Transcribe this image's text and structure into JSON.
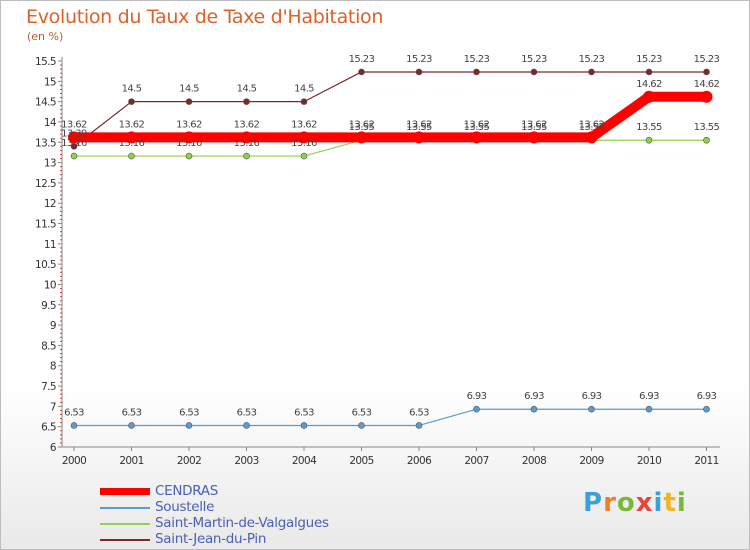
{
  "chart_data": {
    "type": "line",
    "title": "Evolution du Taux de Taxe d'Habitation",
    "ylabel": "(en %)",
    "xlabel": "",
    "categories": [
      "2000",
      "2001",
      "2002",
      "2003",
      "2004",
      "2005",
      "2006",
      "2007",
      "2008",
      "2009",
      "2010",
      "2011"
    ],
    "ylim": [
      6,
      15.5
    ],
    "yticks": [
      "6",
      "6.5",
      "7",
      "7.5",
      "8",
      "8.5",
      "9",
      "9.5",
      "10",
      "10.5",
      "11",
      "11.5",
      "12",
      "12.5",
      "13",
      "13.5",
      "14",
      "14.5",
      "15",
      "15.5"
    ],
    "grid": false,
    "series": [
      {
        "name": "Saint-Martin-de-Valgalgues",
        "color": "#8fd14f",
        "values": [
          13.16,
          13.16,
          13.16,
          13.16,
          13.16,
          13.55,
          13.55,
          13.55,
          13.55,
          13.55,
          13.55,
          13.55
        ],
        "labels": [
          "13.16",
          "13.16",
          "13.16",
          "13.16",
          "13.16",
          "13.55",
          "13.55",
          "13.55",
          "13.55",
          "13.55",
          "13.55",
          "13.55"
        ]
      },
      {
        "name": "Saint-Jean-du-Pin",
        "color": "#7a2a2a",
        "values": [
          13.4,
          14.5,
          14.5,
          14.5,
          14.5,
          15.23,
          15.23,
          15.23,
          15.23,
          15.23,
          15.23,
          15.23
        ],
        "labels": [
          "13.39",
          "14.5",
          "14.5",
          "14.5",
          "14.5",
          "15.23",
          "15.23",
          "15.23",
          "15.23",
          "15.23",
          "15.23",
          "15.23"
        ]
      },
      {
        "name": "Soustelle",
        "color": "#5a9bd0",
        "values": [
          6.53,
          6.53,
          6.53,
          6.53,
          6.53,
          6.53,
          6.53,
          6.93,
          6.93,
          6.93,
          6.93,
          6.93
        ],
        "labels": [
          "6.53",
          "6.53",
          "6.53",
          "6.53",
          "6.53",
          "6.53",
          "6.53",
          "6.93",
          "6.93",
          "6.93",
          "6.93",
          "6.93"
        ]
      },
      {
        "name": "CENDRAS",
        "color": "#ff0000",
        "values": [
          13.62,
          13.62,
          13.62,
          13.62,
          13.62,
          13.62,
          13.62,
          13.62,
          13.62,
          13.62,
          14.62,
          14.62
        ],
        "labels": [
          "13.62",
          "13.62",
          "13.62",
          "13.62",
          "13.62",
          "13.62",
          "13.62",
          "13.62",
          "13.62",
          "13.62",
          "14.62",
          "14.62"
        ]
      }
    ],
    "legend": {
      "position": "bottom-left",
      "entries": [
        "CENDRAS",
        "Soustelle",
        "Saint-Martin-de-Valgalgues",
        "Saint-Jean-du-Pin"
      ]
    }
  },
  "logo": {
    "letters": [
      "P",
      "r",
      "o",
      "x",
      "i",
      "t",
      "i"
    ],
    "colors": [
      "#3aa0d8",
      "#f07e26",
      "#79b83a",
      "#e8463c",
      "#3aa0d8",
      "#f0b428",
      "#79b83a"
    ]
  }
}
